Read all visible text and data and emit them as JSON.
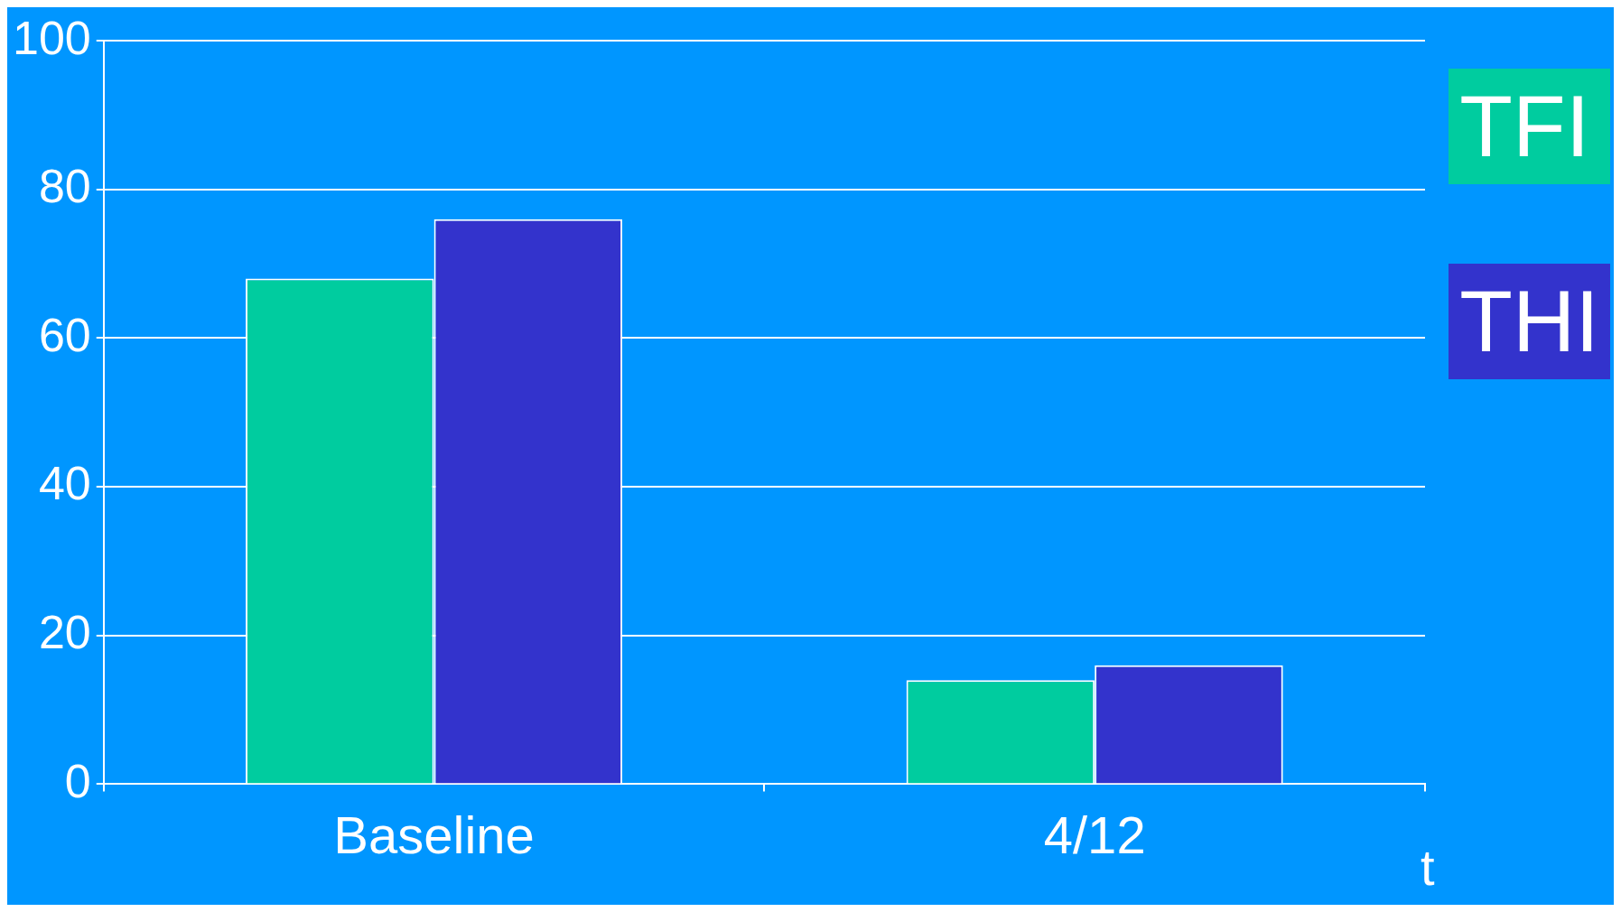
{
  "chart_data": {
    "type": "bar",
    "categories": [
      "Baseline",
      "4/12"
    ],
    "series": [
      {
        "name": "TFI",
        "color": "#00cc9f",
        "values": [
          68,
          14
        ]
      },
      {
        "name": "THI",
        "color": "#3333cc",
        "values": [
          76,
          16
        ]
      }
    ],
    "ylim": [
      0,
      100
    ],
    "yticks": [
      0,
      20,
      40,
      60,
      80,
      100
    ],
    "grid": "y",
    "legend": "right",
    "annotations": [
      "t"
    ]
  }
}
